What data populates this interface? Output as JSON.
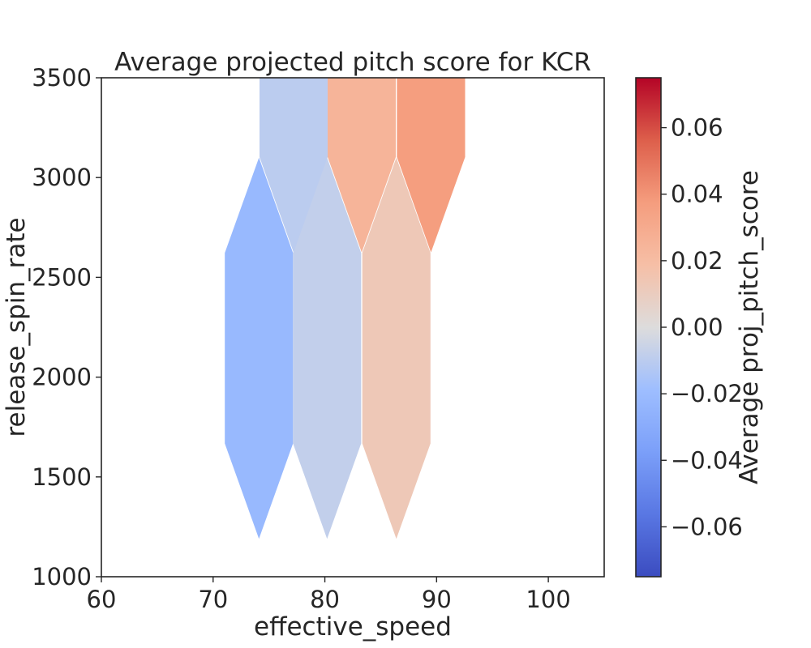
{
  "chart_data": {
    "type": "hexbin",
    "title": "Average projected pitch score for KCR",
    "xlabel": "effective_speed",
    "ylabel": "release_spin_rate",
    "xlim": [
      60,
      105
    ],
    "ylim": [
      1000,
      3500
    ],
    "x_ticks": [
      60,
      70,
      80,
      90,
      100
    ],
    "y_ticks": [
      1000,
      1500,
      2000,
      2500,
      3000,
      3500
    ],
    "grid": false,
    "colormap": "coolwarm",
    "colorbar": {
      "label": "Average proj_pitch_score",
      "range": [
        -0.075,
        0.075
      ],
      "ticks": [
        -0.06,
        -0.04,
        -0.02,
        0.0,
        0.02,
        0.04,
        0.06
      ],
      "tick_labels": [
        "−0.06",
        "−0.04",
        "−0.02",
        "0.00",
        "0.02",
        "0.04",
        "0.06"
      ]
    },
    "hex_radius_spin": 955,
    "hexbins": [
      {
        "x": 74.1,
        "y": 2145,
        "value": -0.022
      },
      {
        "x": 80.2,
        "y": 2145,
        "value": -0.008
      },
      {
        "x": 86.4,
        "y": 2145,
        "value": 0.013
      },
      {
        "x": 77.2,
        "y": 3580,
        "value": -0.01
      },
      {
        "x": 83.3,
        "y": 3580,
        "value": 0.025
      },
      {
        "x": 89.5,
        "y": 3580,
        "value": 0.037
      }
    ]
  }
}
